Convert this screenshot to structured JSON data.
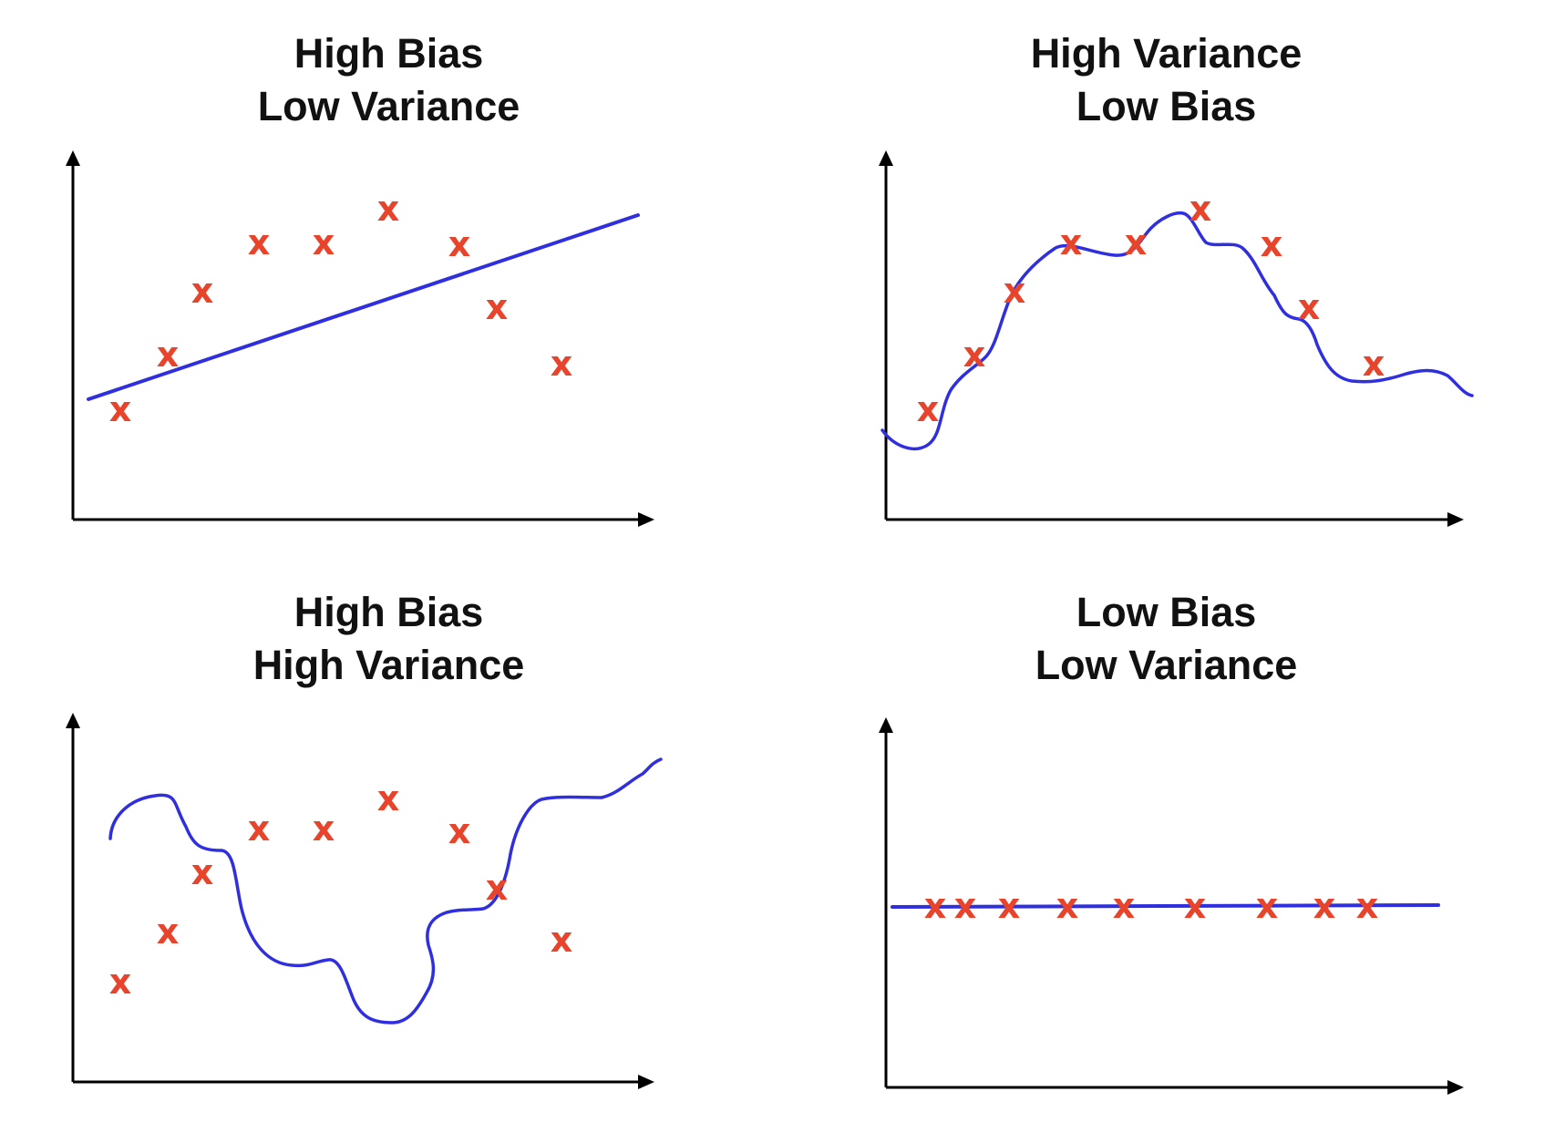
{
  "colors": {
    "axis": "#000000",
    "fit_line": "#2f2fe0",
    "points": "#e8432b",
    "title": "#111111"
  },
  "marker_glyph": "x",
  "panels": [
    {
      "title_line1": "High Bias",
      "title_line2": "Low Variance",
      "fit": "straight line"
    },
    {
      "title_line1": "High Variance",
      "title_line2": "Low Bias",
      "fit": "wiggly curve through points"
    },
    {
      "title_line1": "High Bias",
      "title_line2": "High Variance",
      "fit": "wiggly curve missing points"
    },
    {
      "title_line1": "Low Bias",
      "title_line2": "Low Variance",
      "fit": "horizontal line through points"
    }
  ]
}
